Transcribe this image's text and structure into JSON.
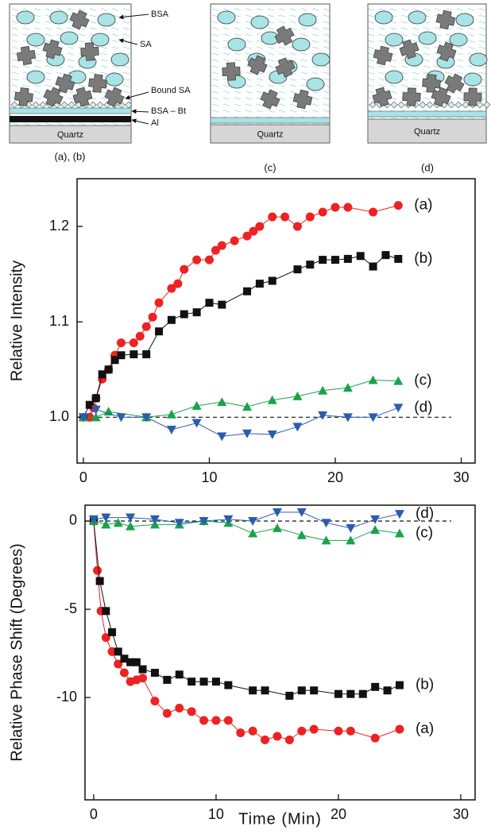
{
  "diagram": {
    "labels": {
      "bsa": "BSA",
      "sa": "SA",
      "bound_sa": "Bound SA",
      "bsa_bt": "BSA – Bt",
      "al": "Al"
    },
    "panels": [
      {
        "caption": "(a),  (b)",
        "substrate": "Quartz"
      },
      {
        "caption": "(c)",
        "substrate": "Quartz"
      },
      {
        "caption": "(d)",
        "substrate": "Quartz"
      }
    ]
  },
  "chart_data": [
    {
      "type": "line",
      "ylabel": "Relative Intensity",
      "xlim": [
        -0.5,
        31.1
      ],
      "xticks": [
        0,
        10,
        20,
        30
      ],
      "ylim": [
        0.952,
        1.25
      ],
      "yticks": [
        {
          "value": 1,
          "label": "1.0"
        },
        1.1,
        1.2
      ],
      "reference_line": 1,
      "series": [
        {
          "name": "(a)",
          "color": "#ee2222",
          "marker": "circle",
          "x": [
            0.5,
            0.8,
            1,
            1.5,
            2,
            2.5,
            3,
            4,
            4.5,
            5,
            5.5,
            6,
            7,
            7.5,
            8,
            9,
            10,
            10.5,
            11,
            12,
            13,
            13.5,
            14,
            15,
            16,
            17,
            18,
            19,
            20,
            21,
            23,
            25
          ],
          "values": [
            1.0,
            1.01,
            1.02,
            1.04,
            1.05,
            1.065,
            1.078,
            1.078,
            1.085,
            1.095,
            1.105,
            1.12,
            1.135,
            1.14,
            1.155,
            1.165,
            1.165,
            1.175,
            1.18,
            1.185,
            1.19,
            1.195,
            1.2,
            1.21,
            1.21,
            1.2,
            1.21,
            1.215,
            1.22,
            1.22,
            1.215,
            1.222
          ]
        },
        {
          "name": "(b)",
          "color": "#111111",
          "marker": "square",
          "x": [
            0,
            0.5,
            1,
            1.5,
            2,
            2.5,
            3,
            4,
            5,
            6,
            7,
            8,
            9,
            10,
            11,
            13,
            14,
            15,
            17,
            18,
            19,
            20,
            21,
            22,
            23,
            24,
            25
          ],
          "values": [
            1.0,
            1.013,
            1.02,
            1.045,
            1.05,
            1.06,
            1.065,
            1.066,
            1.066,
            1.09,
            1.102,
            1.108,
            1.11,
            1.12,
            1.118,
            1.132,
            1.14,
            1.143,
            1.155,
            1.16,
            1.165,
            1.165,
            1.166,
            1.169,
            1.158,
            1.17,
            1.166
          ]
        },
        {
          "name": "(c)",
          "color": "#1aa34a",
          "marker": "triangle-up",
          "x": [
            0,
            1,
            2,
            5,
            7,
            9,
            11,
            13,
            15,
            17,
            19,
            21,
            23,
            25
          ],
          "values": [
            1.0,
            1.0,
            1.006,
            1.0,
            1.003,
            1.012,
            1.016,
            1.011,
            1.018,
            1.022,
            1.028,
            1.031,
            1.039,
            1.038
          ]
        },
        {
          "name": "(d)",
          "color": "#2a5db0",
          "marker": "triangle-down",
          "x": [
            0,
            1,
            3,
            5,
            7,
            9,
            11,
            13,
            15,
            17,
            19,
            21,
            23,
            25
          ],
          "values": [
            1.0,
            1.008,
            1.0,
            1.0,
            0.987,
            0.994,
            0.98,
            0.983,
            0.982,
            0.99,
            1.002,
            1.0,
            1.0,
            1.01
          ]
        }
      ]
    },
    {
      "type": "line",
      "xlabel": "Time (Min)",
      "ylabel": "Relative Phase Shift (Degrees)",
      "xlim": [
        -0.71,
        31.17
      ],
      "xticks": [
        0,
        10,
        20,
        30
      ],
      "ylim": [
        -15.8,
        0.9
      ],
      "yticks": [
        0,
        -5,
        -10
      ],
      "reference_line": 0,
      "series": [
        {
          "name": "(a)",
          "color": "#ee2222",
          "marker": "circle",
          "x": [
            0,
            0.3,
            0.6,
            1,
            1.5,
            2,
            2.5,
            3,
            3.5,
            4,
            5,
            6,
            7,
            8,
            9,
            10,
            11,
            12,
            13,
            14,
            15,
            16,
            17,
            18,
            20,
            21,
            23,
            25
          ],
          "values": [
            0,
            -2.8,
            -5.1,
            -6.6,
            -7.4,
            -8.1,
            -8.6,
            -9.1,
            -9.0,
            -8.9,
            -10.2,
            -10.9,
            -10.6,
            -10.8,
            -11.3,
            -11.3,
            -11.3,
            -12.0,
            -11.9,
            -12.4,
            -12.2,
            -12.4,
            -11.9,
            -11.8,
            -11.9,
            -11.9,
            -12.3,
            -11.8
          ]
        },
        {
          "name": "(b)",
          "color": "#111111",
          "marker": "square",
          "x": [
            0,
            0.5,
            1,
            1.5,
            2,
            2.5,
            3,
            3.5,
            4,
            5,
            6,
            7,
            8,
            9,
            10,
            11,
            13,
            14,
            16,
            17,
            18,
            20,
            21,
            22,
            23,
            24,
            25
          ],
          "values": [
            0,
            -3.4,
            -5.1,
            -6.3,
            -7.4,
            -7.8,
            -8.0,
            -8.0,
            -8.4,
            -8.6,
            -9.0,
            -8.7,
            -9.1,
            -9.1,
            -9.1,
            -9.3,
            -9.6,
            -9.6,
            -9.9,
            -9.6,
            -9.6,
            -9.8,
            -9.8,
            -9.8,
            -9.4,
            -9.6,
            -9.3
          ]
        },
        {
          "name": "(c)",
          "color": "#1aa34a",
          "marker": "triangle-up",
          "x": [
            0,
            1,
            2,
            3,
            5,
            7,
            9,
            11,
            13,
            15,
            17,
            19,
            21,
            23,
            25
          ],
          "values": [
            0,
            -0.2,
            -0.1,
            -0.3,
            -0.2,
            -0.2,
            0,
            -0.1,
            -0.7,
            -0.4,
            -0.8,
            -1.1,
            -1.1,
            -0.5,
            -0.7
          ]
        },
        {
          "name": "(d)",
          "color": "#2a5db0",
          "marker": "triangle-down",
          "x": [
            0,
            1,
            3,
            5,
            7,
            9,
            11,
            13,
            15,
            17,
            19,
            21,
            23,
            25
          ],
          "values": [
            0.1,
            0.2,
            0.2,
            0.1,
            -0.1,
            0,
            0.1,
            0,
            0.5,
            0.5,
            -0.1,
            -0.4,
            0.1,
            0.4
          ]
        }
      ]
    }
  ]
}
